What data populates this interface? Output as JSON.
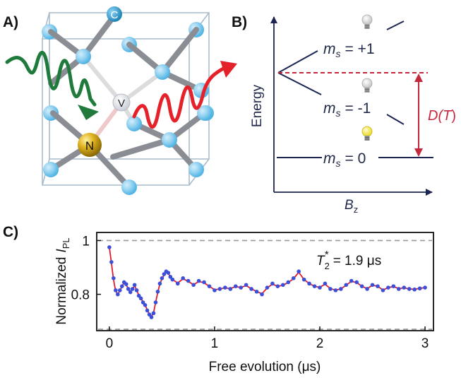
{
  "panel_a": {
    "label": "A)",
    "atoms": {
      "carbon": "C",
      "nitrogen": "N",
      "vacancy": "V"
    },
    "colors": {
      "carbon": "#4fb3e3",
      "carbon_dark": "#2a8ec2",
      "nitrogen": "#c8a214",
      "vacancy": "#eef0f4",
      "bond": "#8a8d93",
      "cube": "#a9bccb",
      "excitation": "#1f7a3c",
      "emission": "#e5222a"
    }
  },
  "panel_b": {
    "label": "B)",
    "y_axis_label": "Energy",
    "x_axis_label_main": "B",
    "x_axis_label_sub": "z",
    "levels": [
      {
        "m": "m",
        "sub": "s",
        "value": "= +1"
      },
      {
        "m": "m",
        "sub": "s",
        "value": "= -1"
      },
      {
        "m": "m",
        "sub": "s",
        "value": "= 0"
      }
    ],
    "splitting_label_prefix": "D(",
    "splitting_label_var": "T",
    "splitting_label_suffix": ")",
    "icons": [
      "bulb-dark-icon",
      "bulb-dark-icon",
      "bulb-lit-icon"
    ],
    "colors": {
      "level": "#1c2452",
      "splitting": "#c4283d",
      "bulb_lit": "#f3e338",
      "bulb_dark": "#c9c9c9"
    }
  },
  "panel_c": {
    "label": "C)",
    "annotation_main": "T",
    "annotation_sub": "2",
    "annotation_star": "*",
    "annotation_value": "= 1.9 μs",
    "colors": {
      "points": "#3b4fd8",
      "fit": "#e41a2c",
      "reference": "#999999"
    }
  },
  "chart_data": {
    "type": "scatter",
    "xlabel": "Free evolution (μs)",
    "ylabel_main": "Normalized",
    "ylabel_var": "I",
    "ylabel_sub": "PL",
    "xlim": [
      -0.12,
      3.08
    ],
    "ylim": [
      0.665,
      1.03
    ],
    "x_ticks": [
      0,
      1,
      2,
      3
    ],
    "x_tick_labels": [
      "0",
      "1",
      "2",
      "3"
    ],
    "y_ticks": [
      1,
      0.8
    ],
    "y_tick_labels": [
      "1",
      "0.8"
    ],
    "reference_lines": [
      1.0,
      0.67
    ],
    "series": [
      {
        "kind": "points",
        "x": [
          0.0,
          0.02,
          0.04,
          0.06,
          0.08,
          0.1,
          0.12,
          0.14,
          0.16,
          0.18,
          0.2,
          0.22,
          0.24,
          0.26,
          0.28,
          0.3,
          0.32,
          0.34,
          0.36,
          0.38,
          0.4,
          0.42,
          0.44,
          0.46,
          0.48,
          0.5,
          0.52,
          0.54,
          0.56,
          0.58,
          0.6,
          0.65,
          0.7,
          0.75,
          0.8,
          0.85,
          0.9,
          0.95,
          1.0,
          1.05,
          1.1,
          1.15,
          1.2,
          1.25,
          1.3,
          1.35,
          1.4,
          1.45,
          1.5,
          1.55,
          1.6,
          1.65,
          1.7,
          1.75,
          1.8,
          1.85,
          1.9,
          1.95,
          2.0,
          2.05,
          2.1,
          2.15,
          2.2,
          2.25,
          2.3,
          2.35,
          2.4,
          2.45,
          2.5,
          2.55,
          2.6,
          2.65,
          2.7,
          2.75,
          2.8,
          2.85,
          2.9,
          2.95,
          3.0
        ],
        "y": [
          0.975,
          0.92,
          0.86,
          0.815,
          0.8,
          0.815,
          0.83,
          0.845,
          0.838,
          0.82,
          0.808,
          0.82,
          0.835,
          0.815,
          0.795,
          0.785,
          0.77,
          0.76,
          0.74,
          0.725,
          0.715,
          0.73,
          0.77,
          0.81,
          0.84,
          0.86,
          0.875,
          0.885,
          0.88,
          0.865,
          0.855,
          0.84,
          0.86,
          0.85,
          0.835,
          0.85,
          0.845,
          0.83,
          0.815,
          0.82,
          0.825,
          0.82,
          0.83,
          0.825,
          0.835,
          0.82,
          0.81,
          0.8,
          0.825,
          0.84,
          0.83,
          0.835,
          0.845,
          0.86,
          0.885,
          0.855,
          0.84,
          0.83,
          0.825,
          0.84,
          0.82,
          0.815,
          0.82,
          0.835,
          0.85,
          0.845,
          0.83,
          0.82,
          0.835,
          0.83,
          0.815,
          0.825,
          0.83,
          0.82,
          0.825,
          0.82,
          0.818,
          0.822,
          0.825
        ]
      },
      {
        "kind": "fit",
        "x": [
          0.0,
          0.02,
          0.04,
          0.06,
          0.08,
          0.1,
          0.12,
          0.14,
          0.16,
          0.18,
          0.2,
          0.22,
          0.24,
          0.26,
          0.28,
          0.3,
          0.32,
          0.34,
          0.36,
          0.38,
          0.4,
          0.42,
          0.44,
          0.46,
          0.48,
          0.5,
          0.52,
          0.54,
          0.56,
          0.58,
          0.6,
          0.65,
          0.7,
          0.75,
          0.8,
          0.85,
          0.9,
          0.95,
          1.0,
          1.05,
          1.1,
          1.15,
          1.2,
          1.25,
          1.3,
          1.35,
          1.4,
          1.45,
          1.5,
          1.55,
          1.6,
          1.65,
          1.7,
          1.75,
          1.8,
          1.85,
          1.9,
          1.95,
          2.0,
          2.05,
          2.1,
          2.15,
          2.2,
          2.25,
          2.3,
          2.35,
          2.4,
          2.45,
          2.5,
          2.55,
          2.6,
          2.65,
          2.7,
          2.75,
          2.8,
          2.85,
          2.9,
          2.95,
          3.0
        ],
        "y": [
          0.975,
          0.915,
          0.855,
          0.812,
          0.8,
          0.813,
          0.83,
          0.843,
          0.836,
          0.82,
          0.81,
          0.82,
          0.832,
          0.815,
          0.797,
          0.786,
          0.772,
          0.76,
          0.742,
          0.727,
          0.718,
          0.732,
          0.77,
          0.808,
          0.838,
          0.858,
          0.872,
          0.882,
          0.878,
          0.865,
          0.855,
          0.842,
          0.858,
          0.848,
          0.836,
          0.848,
          0.843,
          0.83,
          0.817,
          0.82,
          0.824,
          0.821,
          0.829,
          0.825,
          0.833,
          0.82,
          0.811,
          0.802,
          0.824,
          0.838,
          0.83,
          0.834,
          0.844,
          0.858,
          0.882,
          0.855,
          0.84,
          0.83,
          0.826,
          0.838,
          0.821,
          0.816,
          0.82,
          0.834,
          0.848,
          0.844,
          0.83,
          0.821,
          0.834,
          0.83,
          0.816,
          0.825,
          0.829,
          0.821,
          0.824,
          0.82,
          0.819,
          0.822,
          0.825
        ]
      }
    ]
  }
}
